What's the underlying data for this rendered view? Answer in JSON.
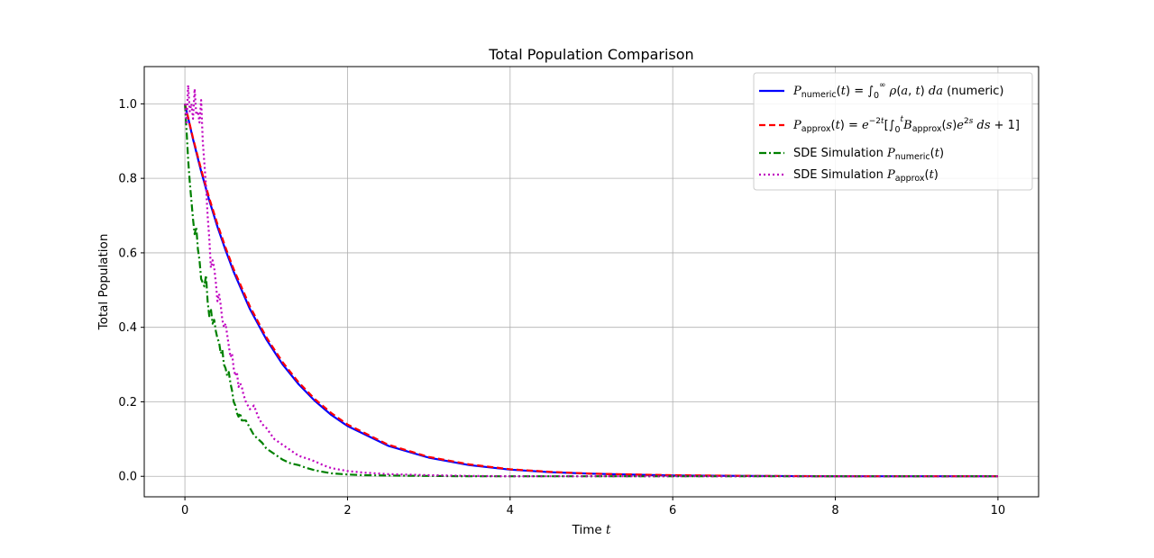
{
  "chart_data": {
    "type": "line",
    "title": "Total Population Comparison",
    "xlabel": "Time",
    "xlabel_var": "t",
    "ylabel": "Total Population",
    "xlim": [
      -0.5,
      10.5
    ],
    "ylim": [
      -0.055,
      1.1
    ],
    "xticks": [
      0,
      2,
      4,
      6,
      8,
      10
    ],
    "yticks": [
      0.0,
      0.2,
      0.4,
      0.6,
      0.8,
      1.0
    ],
    "xtick_labels": [
      "0",
      "2",
      "4",
      "6",
      "8",
      "10"
    ],
    "ytick_labels": [
      "0.0",
      "0.2",
      "0.4",
      "0.6",
      "0.8",
      "1.0"
    ],
    "grid": true,
    "legend_position": "upper-right",
    "series": [
      {
        "name": "P_numeric(t) = ∫_0^∞ ρ(a,t) da (numeric)",
        "color": "#0000ff",
        "style": "solid",
        "x": [
          0,
          0.1,
          0.2,
          0.3,
          0.4,
          0.5,
          0.6,
          0.8,
          1.0,
          1.2,
          1.4,
          1.6,
          1.8,
          2.0,
          2.5,
          3.0,
          3.5,
          4.0,
          4.5,
          5.0,
          6.0,
          7.0,
          8.0,
          9.0,
          10.0
        ],
        "y": [
          1.0,
          0.905,
          0.819,
          0.741,
          0.67,
          0.607,
          0.549,
          0.449,
          0.368,
          0.301,
          0.247,
          0.202,
          0.165,
          0.135,
          0.082,
          0.05,
          0.03,
          0.018,
          0.011,
          0.007,
          0.002,
          0.001,
          0.0,
          0.0,
          0.0
        ]
      },
      {
        "name": "P_approx(t) = e^{-2t}[∫_0^t B_approx(s) e^{2s} ds + 1]",
        "color": "#ff0000",
        "style": "dashed",
        "x": [
          0,
          0.1,
          0.2,
          0.3,
          0.4,
          0.5,
          0.6,
          0.8,
          1.0,
          1.2,
          1.4,
          1.6,
          1.8,
          2.0,
          2.5,
          3.0,
          3.5,
          4.0,
          4.5,
          5.0,
          6.0,
          7.0,
          8.0,
          9.0,
          10.0
        ],
        "y": [
          1.0,
          0.908,
          0.824,
          0.747,
          0.677,
          0.614,
          0.556,
          0.456,
          0.374,
          0.307,
          0.252,
          0.207,
          0.17,
          0.139,
          0.085,
          0.052,
          0.032,
          0.019,
          0.012,
          0.007,
          0.003,
          0.001,
          0.0,
          0.0,
          0.0
        ]
      },
      {
        "name": "SDE Simulation P_numeric(t)",
        "color": "#008000",
        "style": "dashdot",
        "x": [
          0,
          0.02,
          0.04,
          0.06,
          0.08,
          0.1,
          0.12,
          0.14,
          0.16,
          0.18,
          0.2,
          0.22,
          0.24,
          0.26,
          0.28,
          0.3,
          0.32,
          0.34,
          0.36,
          0.38,
          0.4,
          0.42,
          0.44,
          0.46,
          0.48,
          0.5,
          0.52,
          0.54,
          0.56,
          0.58,
          0.6,
          0.62,
          0.64,
          0.66,
          0.68,
          0.7,
          0.75,
          0.8,
          0.85,
          0.9,
          0.95,
          1.0,
          1.1,
          1.2,
          1.3,
          1.4,
          1.5,
          1.6,
          1.7,
          1.8,
          2.0,
          2.2,
          2.5,
          3.0,
          3.5,
          4.0,
          5.0,
          6.0,
          8.0,
          10.0
        ],
        "y": [
          1.0,
          0.93,
          0.85,
          0.79,
          0.74,
          0.69,
          0.65,
          0.67,
          0.61,
          0.58,
          0.53,
          0.52,
          0.51,
          0.54,
          0.47,
          0.43,
          0.45,
          0.41,
          0.42,
          0.39,
          0.37,
          0.36,
          0.33,
          0.34,
          0.3,
          0.29,
          0.27,
          0.28,
          0.25,
          0.23,
          0.2,
          0.19,
          0.17,
          0.16,
          0.17,
          0.15,
          0.15,
          0.13,
          0.11,
          0.1,
          0.09,
          0.075,
          0.06,
          0.045,
          0.035,
          0.03,
          0.022,
          0.016,
          0.012,
          0.008,
          0.005,
          0.003,
          0.002,
          0.001,
          0.0,
          0.0,
          0.0,
          0.0,
          0.0,
          0.0
        ]
      },
      {
        "name": "SDE Simulation P_approx(t)",
        "color": "#bf00bf",
        "style": "dotted",
        "x": [
          0,
          0.02,
          0.04,
          0.06,
          0.08,
          0.1,
          0.12,
          0.14,
          0.16,
          0.18,
          0.2,
          0.22,
          0.24,
          0.26,
          0.28,
          0.3,
          0.32,
          0.34,
          0.36,
          0.38,
          0.4,
          0.42,
          0.44,
          0.46,
          0.48,
          0.5,
          0.52,
          0.54,
          0.56,
          0.58,
          0.6,
          0.62,
          0.64,
          0.66,
          0.68,
          0.7,
          0.72,
          0.75,
          0.8,
          0.85,
          0.9,
          0.95,
          1.0,
          1.1,
          1.2,
          1.3,
          1.4,
          1.5,
          1.6,
          1.7,
          1.8,
          2.0,
          2.2,
          2.5,
          3.0,
          3.5,
          4.0,
          5.0,
          6.0,
          8.0,
          10.0
        ],
        "y": [
          1.0,
          0.95,
          1.05,
          0.98,
          1.0,
          0.96,
          1.04,
          0.97,
          0.98,
          0.95,
          1.01,
          0.9,
          0.84,
          0.78,
          0.7,
          0.64,
          0.56,
          0.58,
          0.56,
          0.52,
          0.47,
          0.49,
          0.46,
          0.42,
          0.4,
          0.41,
          0.38,
          0.35,
          0.32,
          0.33,
          0.29,
          0.27,
          0.28,
          0.24,
          0.25,
          0.24,
          0.22,
          0.2,
          0.18,
          0.19,
          0.16,
          0.14,
          0.13,
          0.1,
          0.085,
          0.07,
          0.055,
          0.048,
          0.04,
          0.03,
          0.022,
          0.014,
          0.01,
          0.006,
          0.003,
          0.001,
          0.0,
          0.0,
          0.0,
          0.0,
          0.0
        ]
      }
    ]
  }
}
